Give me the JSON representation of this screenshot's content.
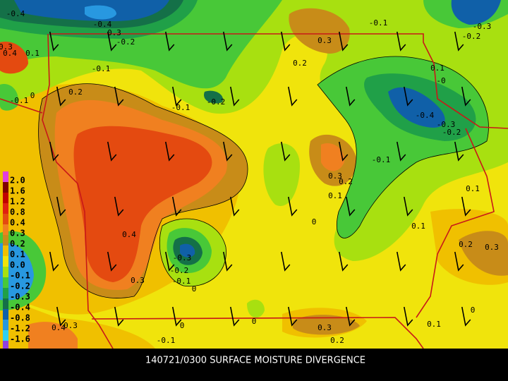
{
  "title": "140721/0300 SURFACE MOISTURE DIVERGENCE",
  "legend": [
    "2.0",
    "1.6",
    "1.2",
    "0.8",
    "0.4",
    "0.3",
    "0.2",
    "0.1",
    "0.0",
    "-0.1",
    "-0.2",
    "-0.3",
    "-0.4",
    "-0.8",
    "-1.2",
    "-1.6"
  ],
  "contour_labels": [
    "-0.4",
    "-0.4",
    "0.3",
    "-0.2",
    "-0.1",
    "-0.3",
    "-0.2",
    "0.3",
    "0.2",
    "-0.1",
    "0.2",
    "0",
    "-0.1",
    "-0.2",
    "0.1",
    "-0",
    "-0.4",
    "-0.3",
    "-0.2",
    "-0.1",
    "0.3",
    "0.2",
    "0.1",
    "0.1",
    "0.1",
    "0",
    "0.4",
    "-0.3",
    "-0.2",
    "-0.1",
    "0",
    "0.3",
    "0.2",
    "0.3",
    "0",
    "0",
    "0.3",
    "0.2",
    "0.1",
    "-0.1",
    "0.4",
    "0.3",
    "0",
    "-0.1",
    "0.3",
    "0.4",
    "0.1"
  ]
}
